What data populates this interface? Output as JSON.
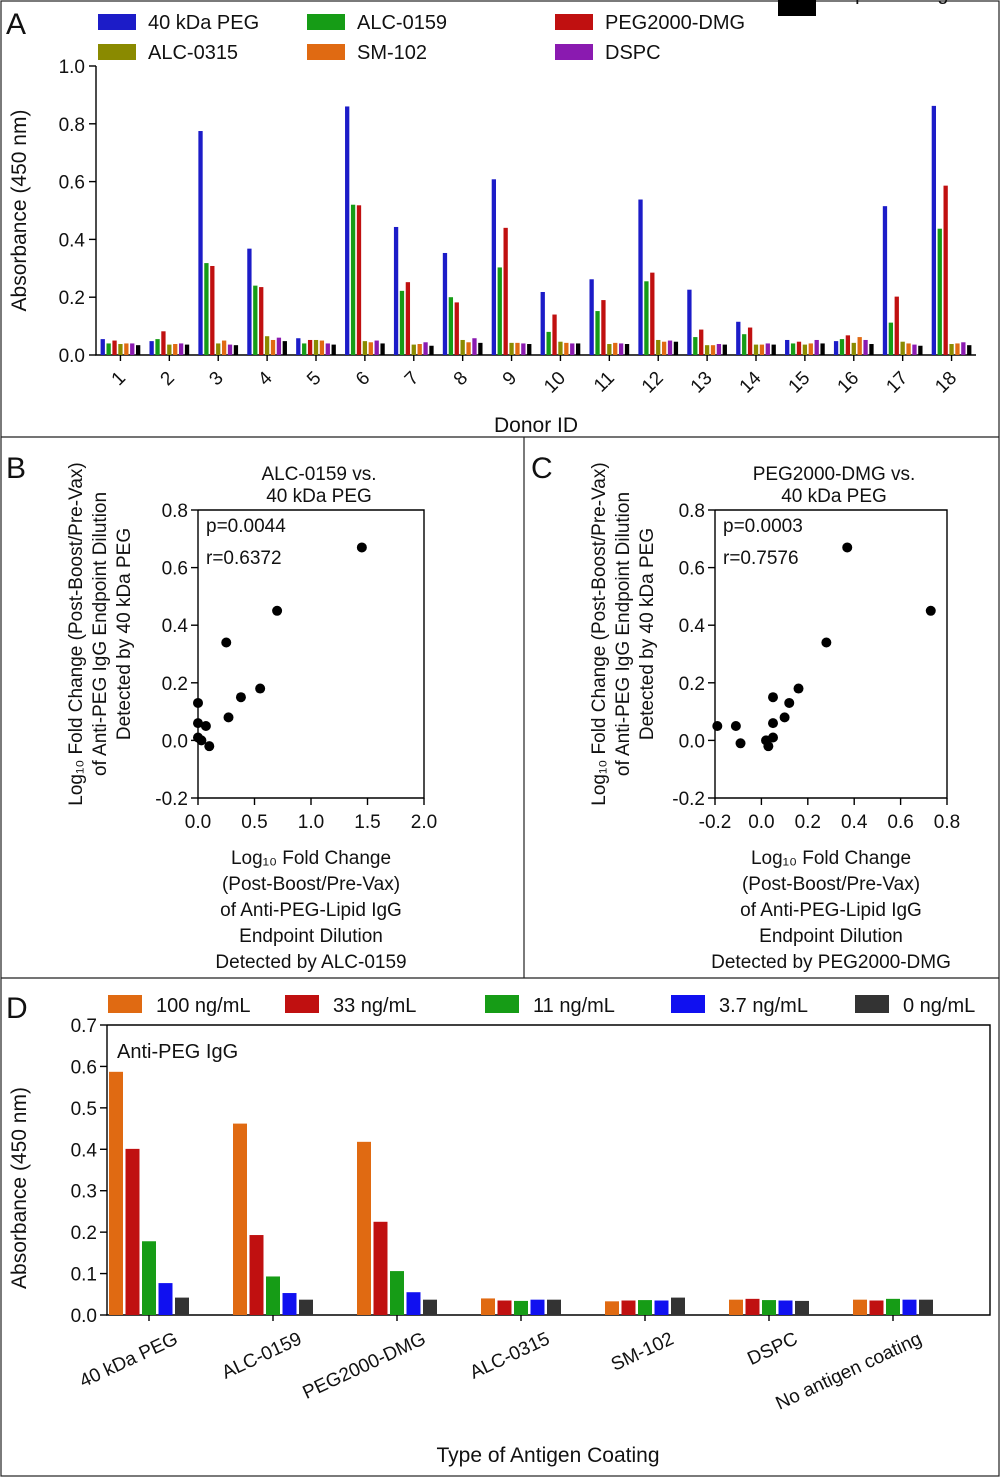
{
  "panels": {
    "a": "A",
    "b": "B",
    "c": "C",
    "d": "D"
  },
  "chart_data": [
    {
      "id": "A",
      "type": "bar",
      "xlabel": "Donor ID",
      "ylabel": "Absorbance (450 nm)",
      "ylim": [
        0,
        1.0
      ],
      "yticks": [
        "0.0",
        "0.2",
        "0.4",
        "0.6",
        "0.8",
        "1.0"
      ],
      "categories": [
        "1",
        "2",
        "3",
        "4",
        "5",
        "6",
        "7",
        "8",
        "9",
        "10",
        "11",
        "12",
        "13",
        "14",
        "15",
        "16",
        "17",
        "18"
      ],
      "legend_placement": "top",
      "series": [
        {
          "name": "40 kDa PEG",
          "color": "#1c1cc8",
          "values": [
            0.055,
            0.048,
            0.775,
            0.368,
            0.058,
            0.86,
            0.443,
            0.353,
            0.608,
            0.218,
            0.262,
            0.538,
            0.226,
            0.115,
            0.052,
            0.048,
            0.515,
            0.862
          ]
        },
        {
          "name": "ALC-0159",
          "color": "#169c16",
          "values": [
            0.04,
            0.055,
            0.318,
            0.24,
            0.04,
            0.52,
            0.222,
            0.2,
            0.303,
            0.08,
            0.152,
            0.255,
            0.062,
            0.072,
            0.04,
            0.055,
            0.112,
            0.437
          ]
        },
        {
          "name": "PEG2000-DMG",
          "color": "#c01010",
          "values": [
            0.05,
            0.082,
            0.308,
            0.235,
            0.052,
            0.518,
            0.252,
            0.182,
            0.44,
            0.14,
            0.19,
            0.285,
            0.088,
            0.095,
            0.046,
            0.068,
            0.202,
            0.586
          ]
        },
        {
          "name": "ALC-0315",
          "color": "#8a8a00",
          "values": [
            0.038,
            0.036,
            0.04,
            0.065,
            0.052,
            0.048,
            0.036,
            0.052,
            0.042,
            0.046,
            0.038,
            0.052,
            0.034,
            0.036,
            0.036,
            0.042,
            0.046,
            0.038
          ]
        },
        {
          "name": "SM-102",
          "color": "#e06a12",
          "values": [
            0.04,
            0.038,
            0.05,
            0.052,
            0.05,
            0.044,
            0.038,
            0.044,
            0.042,
            0.042,
            0.042,
            0.046,
            0.034,
            0.036,
            0.04,
            0.062,
            0.04,
            0.04
          ]
        },
        {
          "name": "DSPC",
          "color": "#8a1ab0",
          "values": [
            0.04,
            0.04,
            0.036,
            0.06,
            0.04,
            0.05,
            0.044,
            0.058,
            0.04,
            0.04,
            0.04,
            0.05,
            0.038,
            0.04,
            0.052,
            0.052,
            0.036,
            0.044
          ]
        },
        {
          "name": "No precoating",
          "color": "#000000",
          "values": [
            0.034,
            0.036,
            0.034,
            0.048,
            0.036,
            0.04,
            0.032,
            0.042,
            0.038,
            0.04,
            0.038,
            0.046,
            0.036,
            0.036,
            0.04,
            0.038,
            0.032,
            0.034
          ]
        }
      ]
    },
    {
      "id": "B",
      "type": "scatter",
      "title_lines": [
        "ALC-0159 vs.",
        "40 kDa PEG"
      ],
      "stats": [
        "p=0.0044",
        "r=0.6372"
      ],
      "ylabel_lines": [
        "Log₁₀ Fold Change (Post-Boost/Pre-Vax)",
        "of Anti-PEG IgG Endpoint Dilution",
        "Detected by 40 kDa PEG"
      ],
      "xlabel_lines": [
        "Log₁₀ Fold Change",
        "(Post-Boost/Pre-Vax)",
        "of Anti-PEG-Lipid IgG",
        "Endpoint Dilution",
        "Detected by ALC-0159"
      ],
      "xlim": [
        0,
        2.0
      ],
      "ylim": [
        -0.2,
        0.8
      ],
      "xticks": [
        "0.0",
        "0.5",
        "1.0",
        "1.5",
        "2.0"
      ],
      "yticks": [
        "-0.2",
        "0.0",
        "0.2",
        "0.4",
        "0.6",
        "0.8"
      ],
      "points": [
        {
          "x": 1.45,
          "y": 0.67
        },
        {
          "x": 0.7,
          "y": 0.45
        },
        {
          "x": 0.25,
          "y": 0.34
        },
        {
          "x": 0.55,
          "y": 0.18
        },
        {
          "x": 0.38,
          "y": 0.15
        },
        {
          "x": 0.0,
          "y": 0.13
        },
        {
          "x": 0.27,
          "y": 0.08
        },
        {
          "x": 0.0,
          "y": 0.06
        },
        {
          "x": 0.07,
          "y": 0.05
        },
        {
          "x": 0.0,
          "y": 0.01
        },
        {
          "x": 0.03,
          "y": 0.0
        },
        {
          "x": 0.1,
          "y": -0.02
        }
      ]
    },
    {
      "id": "C",
      "type": "scatter",
      "title_lines": [
        "PEG2000-DMG vs.",
        "40 kDa PEG"
      ],
      "stats": [
        "p=0.0003",
        "r=0.7576"
      ],
      "ylabel_lines": [
        "Log₁₀ Fold Change (Post-Boost/Pre-Vax)",
        "of Anti-PEG IgG Endpoint Dilution",
        "Detected by 40 kDa PEG"
      ],
      "xlabel_lines": [
        "Log₁₀ Fold Change",
        "(Post-Boost/Pre-Vax)",
        "of Anti-PEG-Lipid IgG",
        "Endpoint Dilution",
        "Detected by PEG2000-DMG"
      ],
      "xlim": [
        -0.2,
        0.8
      ],
      "ylim": [
        -0.2,
        0.8
      ],
      "xticks": [
        "-0.2",
        "0.0",
        "0.2",
        "0.4",
        "0.6",
        "0.8"
      ],
      "yticks": [
        "-0.2",
        "0.0",
        "0.2",
        "0.4",
        "0.6",
        "0.8"
      ],
      "points": [
        {
          "x": 0.37,
          "y": 0.67
        },
        {
          "x": 0.73,
          "y": 0.45
        },
        {
          "x": 0.28,
          "y": 0.34
        },
        {
          "x": 0.16,
          "y": 0.18
        },
        {
          "x": 0.05,
          "y": 0.15
        },
        {
          "x": 0.12,
          "y": 0.13
        },
        {
          "x": 0.1,
          "y": 0.08
        },
        {
          "x": 0.05,
          "y": 0.06
        },
        {
          "x": -0.19,
          "y": 0.05
        },
        {
          "x": -0.11,
          "y": 0.05
        },
        {
          "x": 0.05,
          "y": 0.01
        },
        {
          "x": 0.02,
          "y": 0.0
        },
        {
          "x": -0.09,
          "y": -0.01
        },
        {
          "x": 0.03,
          "y": -0.02
        }
      ]
    },
    {
      "id": "D",
      "type": "bar",
      "inset_label": "Anti-PEG IgG",
      "xlabel": "Type of Antigen Coating",
      "ylabel": "Absorbance (450 nm)",
      "ylim": [
        0,
        0.7
      ],
      "yticks": [
        "0.0",
        "0.1",
        "0.2",
        "0.3",
        "0.4",
        "0.5",
        "0.6",
        "0.7"
      ],
      "categories": [
        "40 kDa PEG",
        "ALC-0159",
        "PEG2000-DMG",
        "ALC-0315",
        "SM-102",
        "DSPC",
        "No antigen coating"
      ],
      "legend_placement": "top",
      "series": [
        {
          "name": "100 ng/mL",
          "color": "#e06a12",
          "values": [
            0.587,
            0.462,
            0.418,
            0.04,
            0.033,
            0.037,
            0.037
          ]
        },
        {
          "name": "33 ng/mL",
          "color": "#c01010",
          "values": [
            0.401,
            0.193,
            0.225,
            0.035,
            0.035,
            0.039,
            0.035
          ]
        },
        {
          "name": "11 ng/mL",
          "color": "#169c16",
          "values": [
            0.178,
            0.093,
            0.106,
            0.034,
            0.036,
            0.036,
            0.039
          ]
        },
        {
          "name": "3.7 ng/mL",
          "color": "#1010f0",
          "values": [
            0.077,
            0.053,
            0.055,
            0.037,
            0.035,
            0.035,
            0.037
          ]
        },
        {
          "name": "0 ng/mL",
          "color": "#333333",
          "values": [
            0.042,
            0.037,
            0.037,
            0.037,
            0.042,
            0.034,
            0.037
          ]
        }
      ]
    }
  ]
}
